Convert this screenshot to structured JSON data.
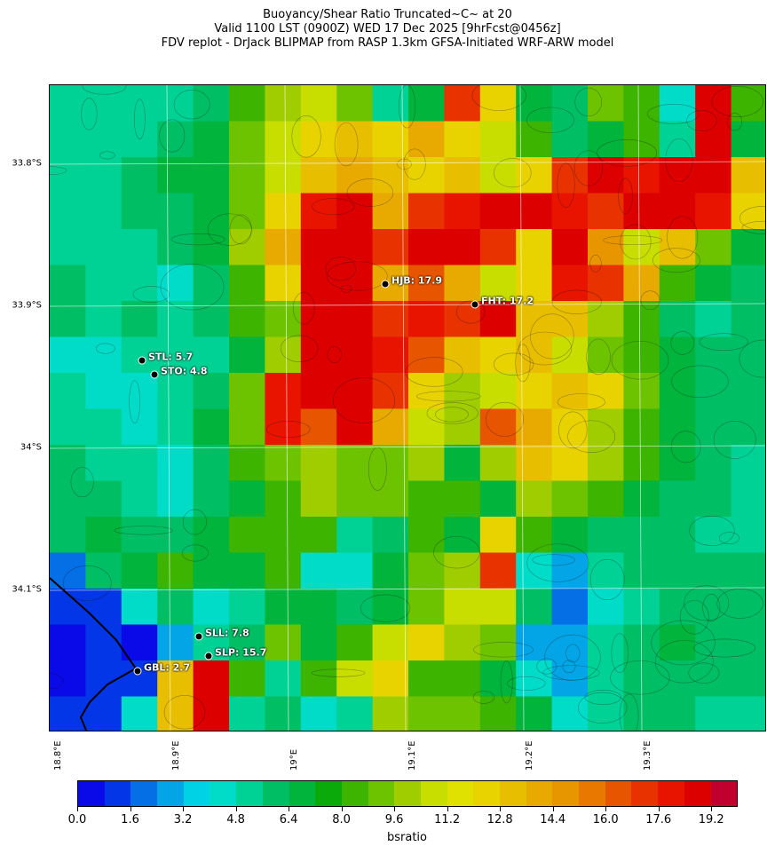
{
  "title": {
    "line1": "Buoyancy/Shear Ratio Truncated~C~    at 20",
    "line2": "Valid 1100 LST (0900Z) WED 17 Dec 2025 [9hrFcst@0456z]",
    "line3": "FDV replot - DrJack BLIPMAP from RASP 1.3km GFSA-Initiated WRF-ARW model"
  },
  "lat_labels": [
    "33.8°S",
    "33.9°S",
    "34°S",
    "34.1°S"
  ],
  "lon_labels": [
    "18.8°E",
    "18.9°E",
    "19°E",
    "19.1°E",
    "19.2°E",
    "19.3°E"
  ],
  "stations": [
    {
      "label": "HJB: 17.9"
    },
    {
      "label": "FHT: 17.2"
    },
    {
      "label": "STL: 5.7"
    },
    {
      "label": "STO: 4.8"
    },
    {
      "label": "SLL: 7.8"
    },
    {
      "label": "SLP: 15.7"
    },
    {
      "label": "GBL: 2.7"
    }
  ],
  "colorbar": {
    "label": "bsratio",
    "min": 0,
    "max": 20,
    "step": 0.8,
    "tick_labels": [
      "0.0",
      "1.6",
      "3.2",
      "4.8",
      "6.4",
      "8.0",
      "9.6",
      "11.2",
      "12.8",
      "14.4",
      "16.0",
      "17.6",
      "19.2"
    ],
    "colors": [
      "#0a0ae8",
      "#0336e6",
      "#0570e6",
      "#03a5e6",
      "#00d2e6",
      "#00dcc8",
      "#00d296",
      "#00be64",
      "#00b43c",
      "#0aaa0a",
      "#3cb400",
      "#6ec300",
      "#a0cd00",
      "#c8de00",
      "#e1e100",
      "#e8d200",
      "#e8be00",
      "#e8aa00",
      "#e89600",
      "#e87800",
      "#e85500",
      "#e83200",
      "#e81400",
      "#dc0000",
      "#c0002d"
    ]
  },
  "chart_data": {
    "type": "heatmap",
    "variable": "bsratio",
    "field": [
      [
        5,
        5,
        5,
        5.5,
        6,
        8,
        10,
        11,
        9,
        5,
        7,
        17,
        12,
        7,
        6,
        9,
        8,
        4,
        19,
        8
      ],
      [
        5,
        5,
        5,
        6,
        7,
        9,
        11,
        12,
        13,
        12,
        14,
        12,
        11,
        8,
        6,
        7,
        8,
        5,
        19,
        7
      ],
      [
        5,
        5,
        6,
        7,
        7,
        9,
        11,
        13,
        14,
        13,
        12,
        13,
        11,
        12,
        17,
        19,
        18,
        19,
        19,
        13
      ],
      [
        5,
        5,
        6,
        6,
        7,
        9,
        12,
        18,
        19,
        14,
        17,
        18,
        19,
        19,
        18,
        17,
        19,
        19,
        18,
        12
      ],
      [
        5,
        5,
        5,
        6,
        7,
        10,
        14,
        19,
        19,
        17,
        19,
        19,
        17,
        12,
        19,
        15,
        11,
        13,
        9,
        7
      ],
      [
        6,
        5,
        5,
        4,
        6,
        8,
        12,
        19,
        19,
        14,
        16,
        14,
        11,
        12,
        18,
        17,
        14,
        8,
        7,
        6
      ],
      [
        6,
        5,
        6,
        5,
        6,
        8,
        9,
        19,
        19,
        17,
        18,
        17,
        19,
        13,
        13,
        10,
        8,
        6,
        5,
        6
      ],
      [
        4,
        4,
        5,
        5,
        5,
        7,
        10,
        19,
        19,
        18,
        16,
        13,
        12,
        13,
        11,
        9,
        8,
        7,
        6,
        6
      ],
      [
        5,
        4,
        4,
        5,
        6,
        9,
        18,
        19,
        19,
        17,
        12,
        10,
        11,
        12,
        13,
        12,
        9,
        7,
        6,
        6
      ],
      [
        5,
        5,
        4,
        5,
        7,
        9,
        18,
        16,
        19,
        14,
        11,
        10,
        16,
        14,
        12,
        10,
        8,
        7,
        6,
        6
      ],
      [
        6,
        5,
        5,
        4,
        6,
        8,
        9,
        10,
        9,
        9,
        10,
        7,
        10,
        13,
        12,
        10,
        8,
        7,
        6,
        5
      ],
      [
        6,
        6,
        5,
        4,
        6,
        7,
        8,
        10,
        9,
        9,
        8,
        8,
        7,
        10,
        9,
        8,
        7,
        6,
        6,
        5
      ],
      [
        6,
        7,
        6,
        6,
        7,
        8,
        8,
        8,
        5,
        6,
        8,
        7,
        12,
        8,
        7,
        6,
        6,
        6,
        5,
        5
      ],
      [
        2,
        6,
        7,
        8,
        7,
        7,
        8,
        4,
        4,
        7,
        9,
        10,
        17,
        4,
        3,
        5,
        6,
        6,
        6,
        6
      ],
      [
        1,
        1,
        4,
        6,
        4,
        5,
        7,
        7,
        6,
        7,
        9,
        11,
        11,
        6,
        2,
        4,
        5,
        6,
        6,
        6
      ],
      [
        0,
        1,
        0,
        3,
        5,
        6,
        9,
        7,
        8,
        11,
        12,
        10,
        9,
        3,
        3,
        5,
        6,
        7,
        6,
        6
      ],
      [
        0,
        1,
        1,
        13,
        19,
        8,
        5,
        8,
        11,
        12,
        8,
        8,
        7,
        4,
        3,
        5,
        6,
        6,
        6,
        6
      ],
      [
        1,
        1,
        4,
        13,
        19,
        5,
        6,
        4,
        5,
        10,
        9,
        9,
        8,
        7,
        4,
        5,
        6,
        6,
        5,
        5
      ]
    ]
  }
}
